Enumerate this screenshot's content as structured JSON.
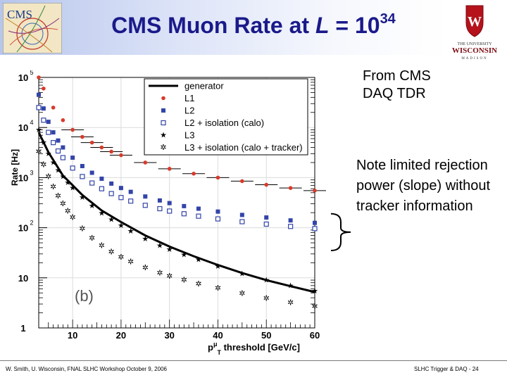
{
  "slide": {
    "title_main": "CMS Muon Rate at",
    "title_L": "L",
    "title_eq": "= 10",
    "title_exp": "34",
    "note_tdr": "From  CMS\nDAQ TDR",
    "note_rejection": "Note limited rejection power (slope) without tracker information",
    "footer_left": "W. Smith, U. Wisconsin, FNAL SLHC Workshop October 9, 2006",
    "footer_right": "SLHC Trigger & DAQ - 24",
    "logo_uw_text_1": "THE UNIVERSITY",
    "logo_uw_text_2": "WISCONSIN",
    "logo_uw_text_3": "MADISON",
    "logo_cms_text": "CMS"
  },
  "chart_data": {
    "type": "scatter",
    "y_scale": "log",
    "ylim": [
      1,
      100000
    ],
    "xlim": [
      3,
      60
    ],
    "ylabel": "Rate [Hz]",
    "xlabel_prefix": "p",
    "xlabel_sub": "T",
    "xlabel_sup": "μ",
    "xlabel_rest": " threshold [GeV/c]",
    "panel_label": "(b)",
    "x_ticks": [
      "10",
      "20",
      "30",
      "40",
      "50",
      "60"
    ],
    "y_ticks": [
      {
        "base": "1",
        "exp": ""
      },
      {
        "base": "10",
        "exp": ""
      },
      {
        "base": "10",
        "exp": "2"
      },
      {
        "base": "10",
        "exp": "3"
      },
      {
        "base": "10",
        "exp": "4"
      },
      {
        "base": "10",
        "exp": "5"
      }
    ],
    "legend_position": "top-right",
    "colors": {
      "L1": "#d93a2b",
      "L2": "#3344a8",
      "L2iso": "#3344a8",
      "generator": "#000000",
      "L3": "#000000",
      "L3iso": "#000000"
    },
    "series": [
      {
        "name": "generator",
        "marker": "line",
        "x": [
          3,
          5,
          8,
          12,
          16,
          20,
          25,
          30,
          35,
          40,
          45,
          50,
          55,
          60
        ],
        "y": [
          8000,
          3200,
          1100,
          450,
          220,
          130,
          70,
          42,
          27,
          18,
          12.5,
          9,
          6.8,
          5.2
        ]
      },
      {
        "name": "L1",
        "marker": "circle",
        "x": [
          3,
          4,
          6,
          8,
          10,
          12,
          14,
          16,
          18,
          20,
          25,
          30,
          35,
          40,
          45,
          50,
          55,
          60
        ],
        "y": [
          100000,
          60000,
          25000,
          14000,
          9000,
          6500,
          5000,
          4000,
          3300,
          2800,
          2000,
          1500,
          1200,
          1000,
          850,
          720,
          620,
          550
        ]
      },
      {
        "name": "L2",
        "marker": "square",
        "x": [
          3,
          4,
          5,
          6,
          7,
          8,
          10,
          12,
          14,
          16,
          18,
          20,
          22,
          25,
          28,
          30,
          33,
          36,
          40,
          45,
          50,
          55,
          60
        ],
        "y": [
          45000,
          24000,
          13000,
          8000,
          5500,
          4000,
          2500,
          1700,
          1250,
          950,
          760,
          620,
          520,
          420,
          350,
          310,
          270,
          240,
          210,
          180,
          160,
          140,
          125
        ]
      },
      {
        "name": "L2 + isolation (calo)",
        "marker": "open-square",
        "x": [
          3,
          4,
          5,
          6,
          7,
          8,
          10,
          12,
          14,
          16,
          18,
          20,
          22,
          25,
          28,
          30,
          33,
          36,
          40,
          45,
          50,
          55,
          60
        ],
        "y": [
          25000,
          14000,
          8000,
          5000,
          3400,
          2500,
          1550,
          1050,
          780,
          600,
          480,
          400,
          340,
          280,
          240,
          215,
          190,
          170,
          150,
          132,
          118,
          106,
          96
        ]
      },
      {
        "name": "L3",
        "marker": "star",
        "x": [
          3,
          4,
          5,
          6,
          7,
          8,
          9,
          10,
          12,
          14,
          16,
          18,
          20,
          22,
          25,
          28,
          30,
          33,
          36,
          40,
          45,
          50,
          55,
          60
        ],
        "y": [
          9000,
          5000,
          3000,
          2000,
          1400,
          1050,
          800,
          620,
          400,
          275,
          195,
          145,
          110,
          85,
          60,
          44,
          37,
          29,
          23,
          17,
          12,
          9,
          7,
          5.5
        ]
      },
      {
        "name": "L3 + isolation (calo + tracker)",
        "marker": "star-open",
        "x": [
          3,
          4,
          5,
          6,
          7,
          8,
          9,
          10,
          12,
          14,
          16,
          18,
          20,
          22,
          25,
          28,
          30,
          33,
          36,
          40,
          45,
          50,
          55,
          60
        ],
        "y": [
          3300,
          1800,
          1050,
          650,
          430,
          300,
          215,
          160,
          95,
          62,
          44,
          33,
          26,
          21,
          16,
          12.5,
          10.8,
          9,
          7.6,
          6.2,
          4.9,
          3.9,
          3.2,
          2.7
        ]
      }
    ],
    "annotation_bracket": {
      "from_y": 190,
      "to_y": 35
    }
  }
}
